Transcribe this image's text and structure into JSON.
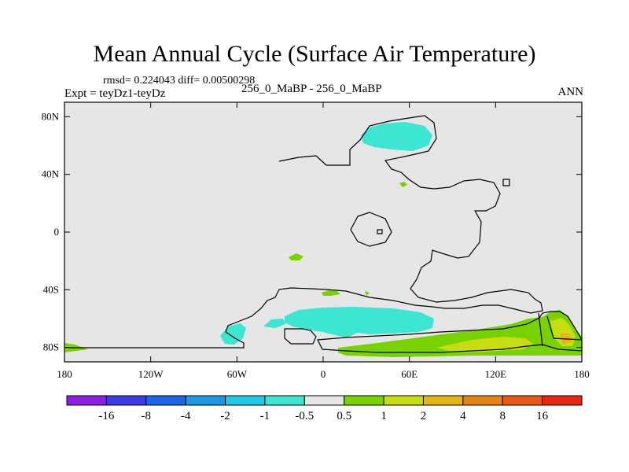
{
  "header": {
    "title": "Mean Annual Cycle (Surface Air Temperature)",
    "stats": "rmsd= 0.224043 diff= 0.00500298",
    "experiment": "Expt = teyDz1-teyDz",
    "period": "256_0_MaBP - 256_0_MaBP",
    "season": "ANN"
  },
  "map": {
    "lat_labels": [
      "80N",
      "40N",
      "0",
      "40S",
      "80S"
    ],
    "lat_values": [
      80,
      40,
      0,
      -40,
      -80
    ],
    "lon_labels": [
      "180",
      "120W",
      "60W",
      "0",
      "60E",
      "120E",
      "180"
    ],
    "lon_values": [
      -180,
      -120,
      -60,
      0,
      60,
      120,
      180
    ],
    "lon_range": [
      -180,
      180
    ],
    "lat_range": [
      -90,
      90
    ],
    "background_color": "#e6e6e6"
  },
  "colorbar": {
    "labels": [
      "-16",
      "-8",
      "-4",
      "-2",
      "-1",
      "-0.5",
      "0.5",
      "1",
      "2",
      "4",
      "8",
      "16"
    ],
    "colors": [
      "#8c1ee6",
      "#3c3ce6",
      "#1e64e6",
      "#1e96e6",
      "#1ec8e6",
      "#3ce6d2",
      "#e6e6e6",
      "#78d200",
      "#c8dc14",
      "#e6b414",
      "#e68214",
      "#e65a14",
      "#e62814"
    ]
  }
}
